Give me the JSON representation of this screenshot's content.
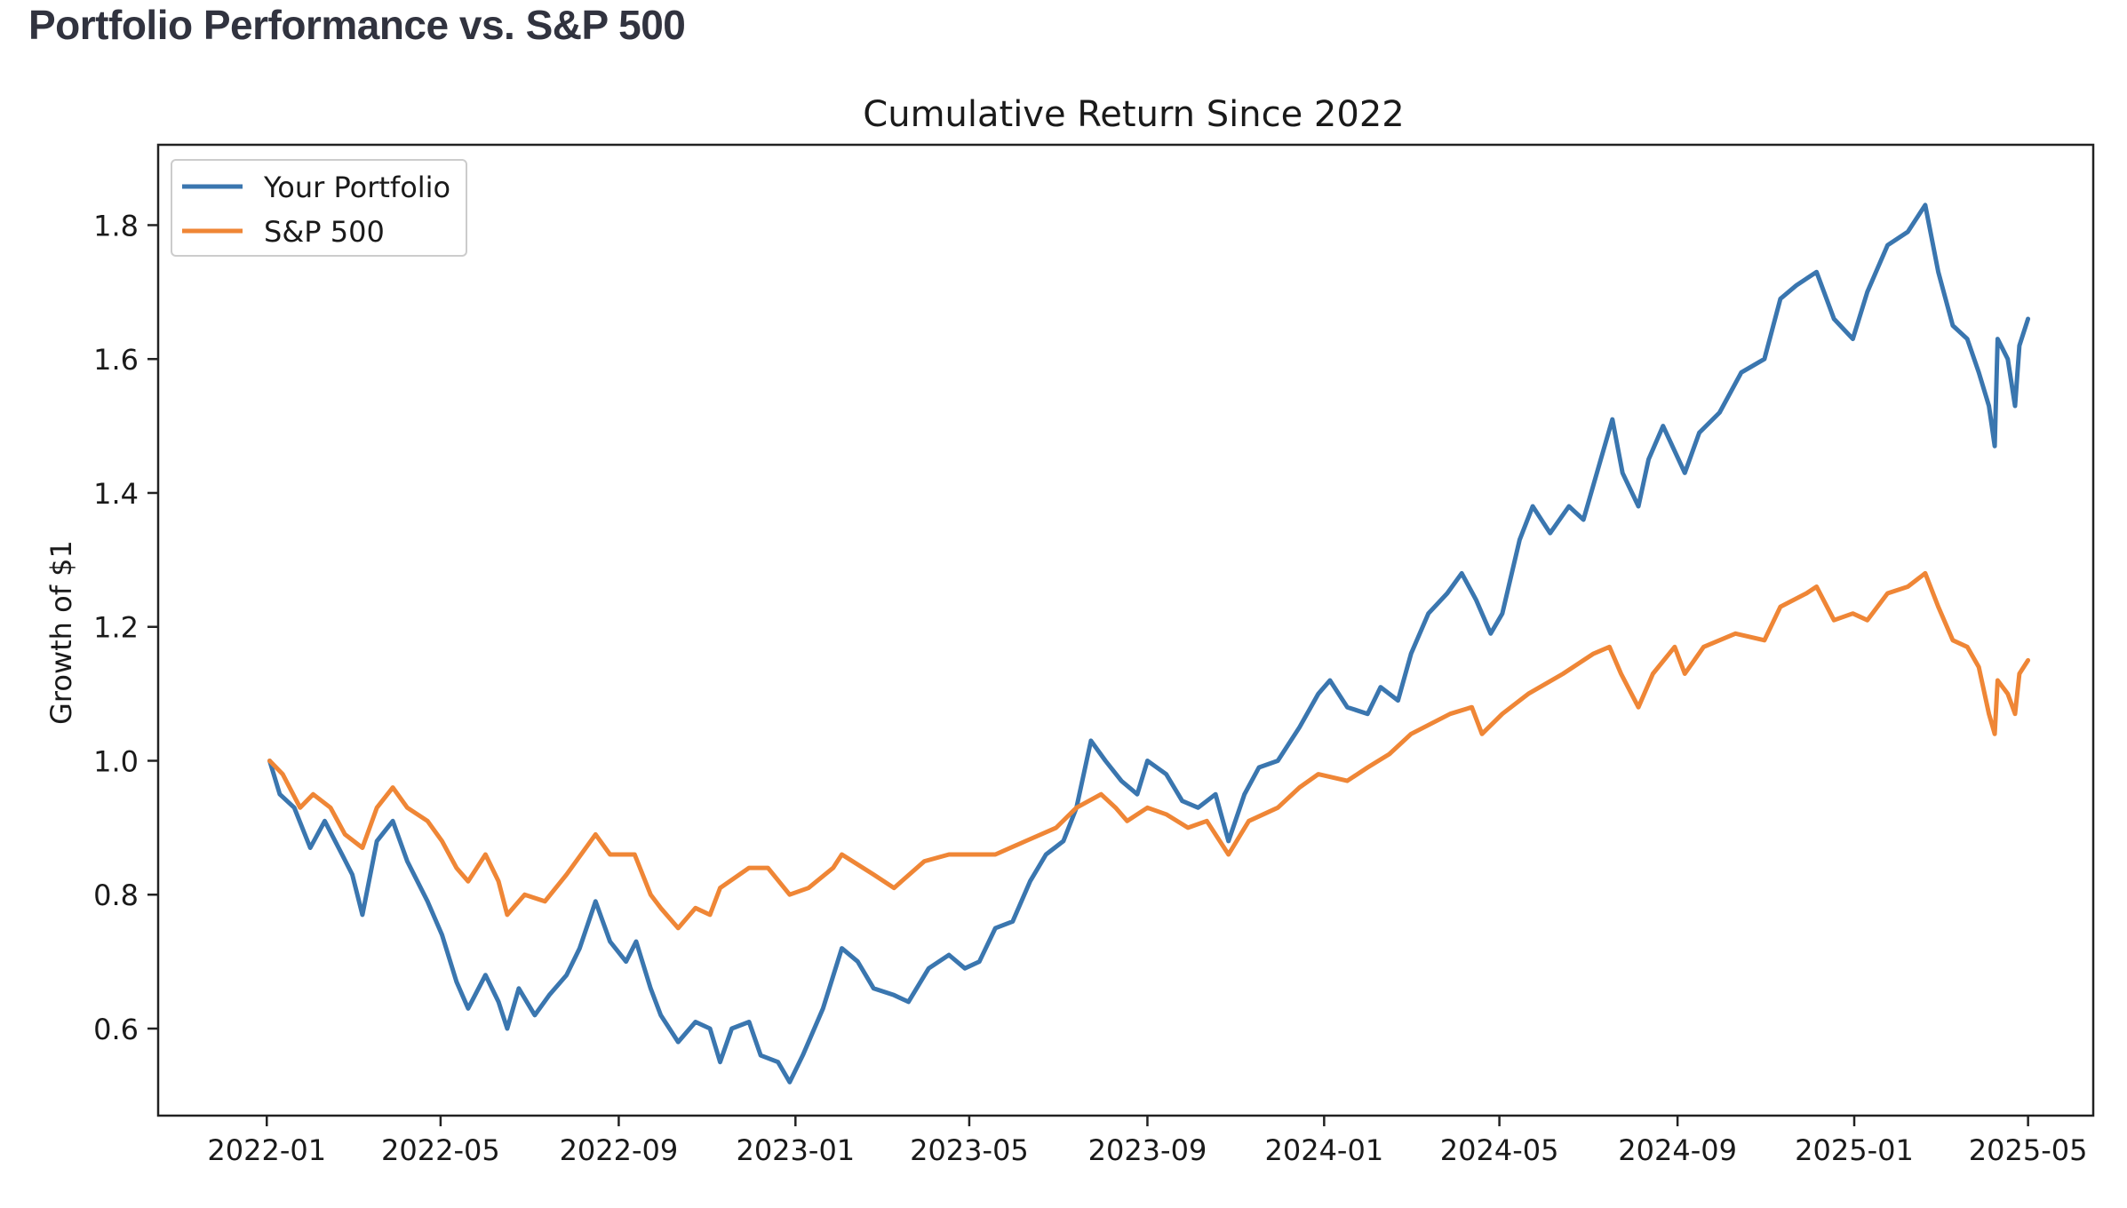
{
  "page": {
    "header": "Portfolio Performance vs. S&P 500"
  },
  "colors": {
    "portfolio": "#3a76af",
    "sp500": "#ef8636",
    "axis": "#222222",
    "header_text": "#31333f"
  },
  "chart_data": {
    "type": "line",
    "title": "Cumulative Return Since 2022",
    "xlabel": "",
    "ylabel": "Growth of $1",
    "x_axis_type": "date",
    "xlim": [
      "2021-10-18",
      "2025-06-15"
    ],
    "ylim": [
      0.47,
      1.92
    ],
    "y_ticks": [
      0.6,
      0.8,
      1.0,
      1.2,
      1.4,
      1.6,
      1.8
    ],
    "y_tick_labels": [
      "0.6",
      "0.8",
      "1.0",
      "1.2",
      "1.4",
      "1.6",
      "1.8"
    ],
    "x_ticks": [
      "2022-01-01",
      "2022-05-01",
      "2022-09-01",
      "2023-01-01",
      "2023-05-01",
      "2023-09-01",
      "2024-01-01",
      "2024-05-01",
      "2024-09-01",
      "2025-01-01",
      "2025-05-01"
    ],
    "x_tick_labels": [
      "2022-01",
      "2022-05",
      "2022-09",
      "2023-01",
      "2023-05",
      "2023-09",
      "2024-01",
      "2024-05",
      "2024-09",
      "2025-01",
      "2025-05"
    ],
    "grid": false,
    "legend_position": "top-left",
    "series": [
      {
        "name": "Your Portfolio",
        "color": "#3a76af",
        "points": [
          [
            "2022-01-03",
            1.0
          ],
          [
            "2022-01-10",
            0.95
          ],
          [
            "2022-01-20",
            0.93
          ],
          [
            "2022-01-31",
            0.87
          ],
          [
            "2022-02-10",
            0.91
          ],
          [
            "2022-02-22",
            0.86
          ],
          [
            "2022-03-01",
            0.83
          ],
          [
            "2022-03-08",
            0.77
          ],
          [
            "2022-03-18",
            0.88
          ],
          [
            "2022-03-29",
            0.91
          ],
          [
            "2022-04-08",
            0.85
          ],
          [
            "2022-04-22",
            0.79
          ],
          [
            "2022-05-02",
            0.74
          ],
          [
            "2022-05-12",
            0.67
          ],
          [
            "2022-05-20",
            0.63
          ],
          [
            "2022-06-01",
            0.68
          ],
          [
            "2022-06-10",
            0.64
          ],
          [
            "2022-06-16",
            0.6
          ],
          [
            "2022-06-24",
            0.66
          ],
          [
            "2022-07-05",
            0.62
          ],
          [
            "2022-07-15",
            0.65
          ],
          [
            "2022-07-27",
            0.68
          ],
          [
            "2022-08-05",
            0.72
          ],
          [
            "2022-08-16",
            0.79
          ],
          [
            "2022-08-26",
            0.73
          ],
          [
            "2022-09-06",
            0.7
          ],
          [
            "2022-09-13",
            0.73
          ],
          [
            "2022-09-23",
            0.66
          ],
          [
            "2022-09-30",
            0.62
          ],
          [
            "2022-10-12",
            0.58
          ],
          [
            "2022-10-24",
            0.61
          ],
          [
            "2022-11-03",
            0.6
          ],
          [
            "2022-11-10",
            0.55
          ],
          [
            "2022-11-18",
            0.6
          ],
          [
            "2022-11-30",
            0.61
          ],
          [
            "2022-12-08",
            0.56
          ],
          [
            "2022-12-20",
            0.55
          ],
          [
            "2022-12-28",
            0.52
          ],
          [
            "2023-01-06",
            0.56
          ],
          [
            "2023-01-20",
            0.63
          ],
          [
            "2023-02-02",
            0.72
          ],
          [
            "2023-02-13",
            0.7
          ],
          [
            "2023-02-24",
            0.66
          ],
          [
            "2023-03-10",
            0.65
          ],
          [
            "2023-03-20",
            0.64
          ],
          [
            "2023-04-03",
            0.69
          ],
          [
            "2023-04-17",
            0.71
          ],
          [
            "2023-04-28",
            0.69
          ],
          [
            "2023-05-08",
            0.7
          ],
          [
            "2023-05-19",
            0.75
          ],
          [
            "2023-05-31",
            0.76
          ],
          [
            "2023-06-12",
            0.82
          ],
          [
            "2023-06-23",
            0.86
          ],
          [
            "2023-07-05",
            0.88
          ],
          [
            "2023-07-14",
            0.93
          ],
          [
            "2023-07-24",
            1.03
          ],
          [
            "2023-08-03",
            1.0
          ],
          [
            "2023-08-14",
            0.97
          ],
          [
            "2023-08-25",
            0.95
          ],
          [
            "2023-09-01",
            1.0
          ],
          [
            "2023-09-14",
            0.98
          ],
          [
            "2023-09-25",
            0.94
          ],
          [
            "2023-10-06",
            0.93
          ],
          [
            "2023-10-18",
            0.95
          ],
          [
            "2023-10-27",
            0.88
          ],
          [
            "2023-11-07",
            0.95
          ],
          [
            "2023-11-17",
            0.99
          ],
          [
            "2023-11-30",
            1.0
          ],
          [
            "2023-12-15",
            1.05
          ],
          [
            "2023-12-28",
            1.1
          ],
          [
            "2024-01-05",
            1.12
          ],
          [
            "2024-01-17",
            1.08
          ],
          [
            "2024-01-31",
            1.07
          ],
          [
            "2024-02-09",
            1.11
          ],
          [
            "2024-02-21",
            1.09
          ],
          [
            "2024-03-01",
            1.16
          ],
          [
            "2024-03-13",
            1.22
          ],
          [
            "2024-03-26",
            1.25
          ],
          [
            "2024-04-05",
            1.28
          ],
          [
            "2024-04-15",
            1.24
          ],
          [
            "2024-04-25",
            1.19
          ],
          [
            "2024-05-03",
            1.22
          ],
          [
            "2024-05-15",
            1.33
          ],
          [
            "2024-05-24",
            1.38
          ],
          [
            "2024-06-05",
            1.34
          ],
          [
            "2024-06-18",
            1.38
          ],
          [
            "2024-06-28",
            1.36
          ],
          [
            "2024-07-10",
            1.45
          ],
          [
            "2024-07-18",
            1.51
          ],
          [
            "2024-07-25",
            1.43
          ],
          [
            "2024-08-05",
            1.38
          ],
          [
            "2024-08-12",
            1.45
          ],
          [
            "2024-08-22",
            1.5
          ],
          [
            "2024-09-06",
            1.43
          ],
          [
            "2024-09-16",
            1.49
          ],
          [
            "2024-09-30",
            1.52
          ],
          [
            "2024-10-15",
            1.58
          ],
          [
            "2024-10-31",
            1.6
          ],
          [
            "2024-11-11",
            1.69
          ],
          [
            "2024-11-22",
            1.71
          ],
          [
            "2024-12-06",
            1.73
          ],
          [
            "2024-12-18",
            1.66
          ],
          [
            "2024-12-31",
            1.63
          ],
          [
            "2025-01-10",
            1.7
          ],
          [
            "2025-01-24",
            1.77
          ],
          [
            "2025-02-07",
            1.79
          ],
          [
            "2025-02-19",
            1.83
          ],
          [
            "2025-02-28",
            1.73
          ],
          [
            "2025-03-10",
            1.65
          ],
          [
            "2025-03-20",
            1.63
          ],
          [
            "2025-03-28",
            1.58
          ],
          [
            "2025-04-04",
            1.53
          ],
          [
            "2025-04-08",
            1.47
          ],
          [
            "2025-04-10",
            1.63
          ],
          [
            "2025-04-17",
            1.6
          ],
          [
            "2025-04-22",
            1.53
          ],
          [
            "2025-04-25",
            1.62
          ],
          [
            "2025-05-01",
            1.66
          ]
        ]
      },
      {
        "name": "S&P 500",
        "color": "#ef8636",
        "points": [
          [
            "2022-01-03",
            1.0
          ],
          [
            "2022-01-12",
            0.98
          ],
          [
            "2022-01-24",
            0.93
          ],
          [
            "2022-02-02",
            0.95
          ],
          [
            "2022-02-14",
            0.93
          ],
          [
            "2022-02-24",
            0.89
          ],
          [
            "2022-03-08",
            0.87
          ],
          [
            "2022-03-18",
            0.93
          ],
          [
            "2022-03-29",
            0.96
          ],
          [
            "2022-04-08",
            0.93
          ],
          [
            "2022-04-22",
            0.91
          ],
          [
            "2022-05-02",
            0.88
          ],
          [
            "2022-05-12",
            0.84
          ],
          [
            "2022-05-20",
            0.82
          ],
          [
            "2022-06-01",
            0.86
          ],
          [
            "2022-06-10",
            0.82
          ],
          [
            "2022-06-16",
            0.77
          ],
          [
            "2022-06-28",
            0.8
          ],
          [
            "2022-07-12",
            0.79
          ],
          [
            "2022-07-27",
            0.83
          ],
          [
            "2022-08-16",
            0.89
          ],
          [
            "2022-08-26",
            0.86
          ],
          [
            "2022-09-12",
            0.86
          ],
          [
            "2022-09-23",
            0.8
          ],
          [
            "2022-09-30",
            0.78
          ],
          [
            "2022-10-12",
            0.75
          ],
          [
            "2022-10-24",
            0.78
          ],
          [
            "2022-11-03",
            0.77
          ],
          [
            "2022-11-10",
            0.81
          ],
          [
            "2022-11-30",
            0.84
          ],
          [
            "2022-12-13",
            0.84
          ],
          [
            "2022-12-28",
            0.8
          ],
          [
            "2023-01-10",
            0.81
          ],
          [
            "2023-01-27",
            0.84
          ],
          [
            "2023-02-02",
            0.86
          ],
          [
            "2023-02-24",
            0.83
          ],
          [
            "2023-03-10",
            0.81
          ],
          [
            "2023-03-31",
            0.85
          ],
          [
            "2023-04-17",
            0.86
          ],
          [
            "2023-04-28",
            0.86
          ],
          [
            "2023-05-19",
            0.86
          ],
          [
            "2023-06-09",
            0.88
          ],
          [
            "2023-06-30",
            0.9
          ],
          [
            "2023-07-14",
            0.93
          ],
          [
            "2023-07-31",
            0.95
          ],
          [
            "2023-08-10",
            0.93
          ],
          [
            "2023-08-18",
            0.91
          ],
          [
            "2023-09-01",
            0.93
          ],
          [
            "2023-09-14",
            0.92
          ],
          [
            "2023-09-29",
            0.9
          ],
          [
            "2023-10-12",
            0.91
          ],
          [
            "2023-10-27",
            0.86
          ],
          [
            "2023-11-10",
            0.91
          ],
          [
            "2023-11-30",
            0.93
          ],
          [
            "2023-12-15",
            0.96
          ],
          [
            "2023-12-28",
            0.98
          ],
          [
            "2024-01-17",
            0.97
          ],
          [
            "2024-01-31",
            0.99
          ],
          [
            "2024-02-15",
            1.01
          ],
          [
            "2024-03-01",
            1.04
          ],
          [
            "2024-03-28",
            1.07
          ],
          [
            "2024-04-12",
            1.08
          ],
          [
            "2024-04-19",
            1.04
          ],
          [
            "2024-05-03",
            1.07
          ],
          [
            "2024-05-21",
            1.1
          ],
          [
            "2024-06-14",
            1.13
          ],
          [
            "2024-07-05",
            1.16
          ],
          [
            "2024-07-16",
            1.17
          ],
          [
            "2024-07-24",
            1.13
          ],
          [
            "2024-08-05",
            1.08
          ],
          [
            "2024-08-15",
            1.13
          ],
          [
            "2024-08-30",
            1.17
          ],
          [
            "2024-09-06",
            1.13
          ],
          [
            "2024-09-19",
            1.17
          ],
          [
            "2024-10-11",
            1.19
          ],
          [
            "2024-10-31",
            1.18
          ],
          [
            "2024-11-11",
            1.23
          ],
          [
            "2024-11-29",
            1.25
          ],
          [
            "2024-12-06",
            1.26
          ],
          [
            "2024-12-18",
            1.21
          ],
          [
            "2024-12-31",
            1.22
          ],
          [
            "2025-01-10",
            1.21
          ],
          [
            "2025-01-24",
            1.25
          ],
          [
            "2025-02-07",
            1.26
          ],
          [
            "2025-02-19",
            1.28
          ],
          [
            "2025-02-28",
            1.23
          ],
          [
            "2025-03-10",
            1.18
          ],
          [
            "2025-03-20",
            1.17
          ],
          [
            "2025-03-28",
            1.14
          ],
          [
            "2025-04-04",
            1.07
          ],
          [
            "2025-04-08",
            1.04
          ],
          [
            "2025-04-10",
            1.12
          ],
          [
            "2025-04-17",
            1.1
          ],
          [
            "2025-04-22",
            1.07
          ],
          [
            "2025-04-25",
            1.13
          ],
          [
            "2025-05-01",
            1.15
          ]
        ]
      }
    ]
  }
}
